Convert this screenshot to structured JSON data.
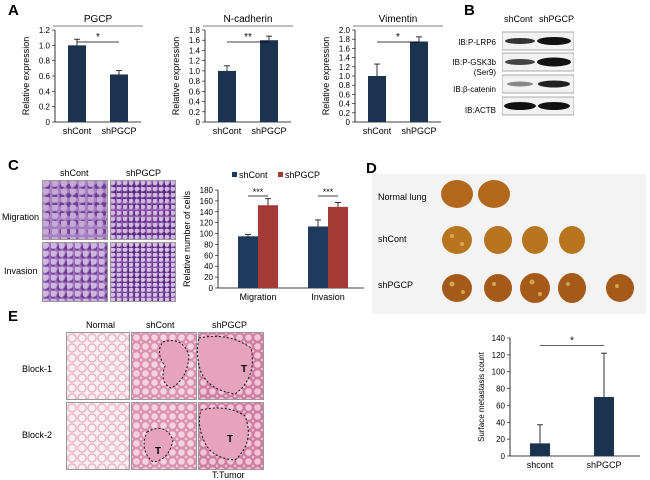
{
  "panels": {
    "A": "A",
    "B": "B",
    "C": "C",
    "D": "D",
    "E": "E"
  },
  "panelA": {
    "ylabel": "Relative expression",
    "charts": [
      {
        "title": "PGCP",
        "categories": [
          "shCont",
          "shPGCP"
        ],
        "values": [
          1.0,
          0.62
        ],
        "errors": [
          0.08,
          0.05
        ],
        "ylim": [
          0,
          1.2
        ],
        "ticks": [
          "0",
          "0.2",
          "0.4",
          "0.6",
          "0.8",
          "1.0",
          "1.2"
        ],
        "sig": "*"
      },
      {
        "title": "N-cadherin",
        "categories": [
          "shCont",
          "shPGCP"
        ],
        "values": [
          1.0,
          1.6
        ],
        "errors": [
          0.1,
          0.08
        ],
        "ylim": [
          0,
          1.8
        ],
        "ticks": [
          "0",
          "0.2",
          "0.4",
          "0.6",
          "0.8",
          "1.0",
          "1.2",
          "1.4",
          "1.6",
          "1.8"
        ],
        "sig": "**"
      },
      {
        "title": "Vimentin",
        "categories": [
          "shCont",
          "shPGCP"
        ],
        "values": [
          1.0,
          1.75
        ],
        "errors": [
          0.26,
          0.1
        ],
        "ylim": [
          0,
          2.0
        ],
        "ticks": [
          "0",
          "0.2",
          "0.4",
          "0.6",
          "0.8",
          "1.0",
          "1.2",
          "1.4",
          "1.6",
          "1.8",
          "2.0"
        ],
        "sig": "*"
      }
    ]
  },
  "panelB": {
    "columns": [
      "shCont",
      "shPGCP"
    ],
    "rows": [
      "IB:P-LRP6",
      "IB:P-GSK3b",
      "(Ser9)",
      "IB:β-catenin",
      "IB:ACTB"
    ]
  },
  "panelC": {
    "columns": [
      "shCont",
      "shPGCP"
    ],
    "rows": [
      "Migration",
      "Invasion"
    ],
    "chart": {
      "ylabel": "Relative number of cells",
      "categories": [
        "Migration",
        "Invasion"
      ],
      "series": [
        {
          "name": "shCont",
          "values": [
            95,
            113
          ],
          "errors": [
            3,
            12
          ],
          "color": "#1f3a5c"
        },
        {
          "name": "shPGCP",
          "values": [
            152,
            149
          ],
          "errors": [
            12,
            8
          ],
          "color": "#a33a36"
        }
      ],
      "ylim": [
        0,
        180
      ],
      "ticks": [
        "0",
        "20",
        "40",
        "60",
        "80",
        "100",
        "120",
        "140",
        "160",
        "180"
      ],
      "sig": [
        "***",
        "***"
      ]
    }
  },
  "panelD": {
    "rows": [
      "Normal lung",
      "shCont",
      "shPGCP"
    ],
    "chart": {
      "ylabel": "Surface metastasis count",
      "categories": [
        "shcont",
        "shPGCP"
      ],
      "values": [
        15,
        70
      ],
      "errors": [
        22,
        52
      ],
      "ylim": [
        0,
        140
      ],
      "ticks": [
        "0",
        "20",
        "40",
        "60",
        "80",
        "100",
        "120",
        "140"
      ],
      "sig": "*"
    }
  },
  "panelE": {
    "columns": [
      "Normal",
      "shCont",
      "shPGCP"
    ],
    "rows": [
      "Block-1",
      "Block-2"
    ],
    "tumor_mark": "T",
    "caption": "T:Tumor"
  }
}
